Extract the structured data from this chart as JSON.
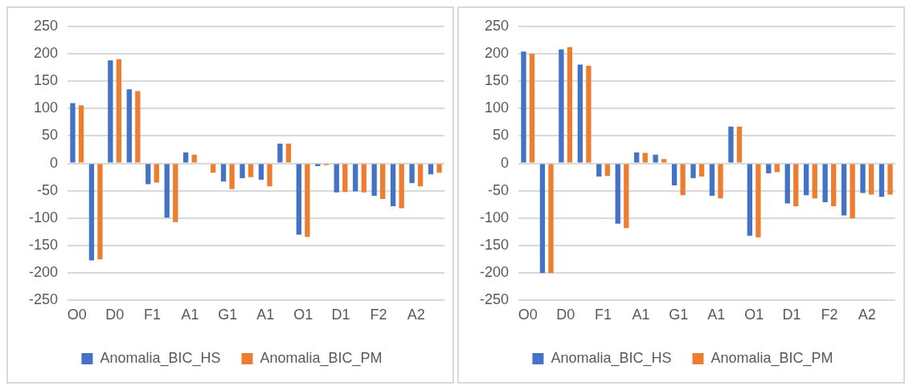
{
  "chart_data": [
    {
      "type": "bar",
      "categories": [
        "O0",
        null,
        "D0",
        null,
        "F1",
        null,
        "A1",
        null,
        "G1",
        null,
        "A1",
        null,
        "O1",
        null,
        "D1",
        null,
        "F2",
        null,
        "A2",
        null
      ],
      "series": [
        {
          "name": "Anomalia_BIC_HS",
          "color": "#4472c4",
          "values": [
            110,
            -177,
            188,
            135,
            -38,
            -99,
            20,
            0,
            -33,
            -27,
            -30,
            36,
            -130,
            -5,
            -53,
            -51,
            -59,
            -78,
            -36,
            -20
          ]
        },
        {
          "name": "Anomalia_BIC_PM",
          "color": "#ed7d31",
          "values": [
            106,
            -175,
            190,
            132,
            -35,
            -107,
            16,
            -17,
            -47,
            -25,
            -42,
            36,
            -134,
            -3,
            -52,
            -53,
            -65,
            -82,
            -42,
            -17
          ]
        }
      ],
      "ylim": [
        -250,
        250
      ],
      "yticks": [
        -250,
        -200,
        -150,
        -100,
        -50,
        0,
        50,
        100,
        150,
        200,
        250
      ],
      "grid": "y",
      "legend": "bottom"
    },
    {
      "type": "bar",
      "categories": [
        "O0",
        null,
        "D0",
        null,
        "F1",
        null,
        "A1",
        null,
        "G1",
        null,
        "A1",
        null,
        "O1",
        null,
        "D1",
        null,
        "F2",
        null,
        "A2",
        null
      ],
      "series": [
        {
          "name": "Anomalia_BIC_HS",
          "color": "#4472c4",
          "values": [
            204,
            -200,
            208,
            180,
            -24,
            -110,
            20,
            16,
            -40,
            -27,
            -59,
            67,
            -132,
            -18,
            -73,
            -58,
            -71,
            -95,
            -54,
            -61
          ]
        },
        {
          "name": "Anomalia_BIC_PM",
          "color": "#ed7d31",
          "values": [
            200,
            -200,
            212,
            178,
            -23,
            -118,
            19,
            8,
            -58,
            -24,
            -64,
            67,
            -135,
            -16,
            -78,
            -64,
            -78,
            -100,
            -57,
            -57
          ]
        }
      ],
      "ylim": [
        -250,
        250
      ],
      "yticks": [
        -250,
        -200,
        -150,
        -100,
        -50,
        0,
        50,
        100,
        150,
        200,
        250
      ],
      "grid": "y",
      "legend": "bottom"
    }
  ]
}
